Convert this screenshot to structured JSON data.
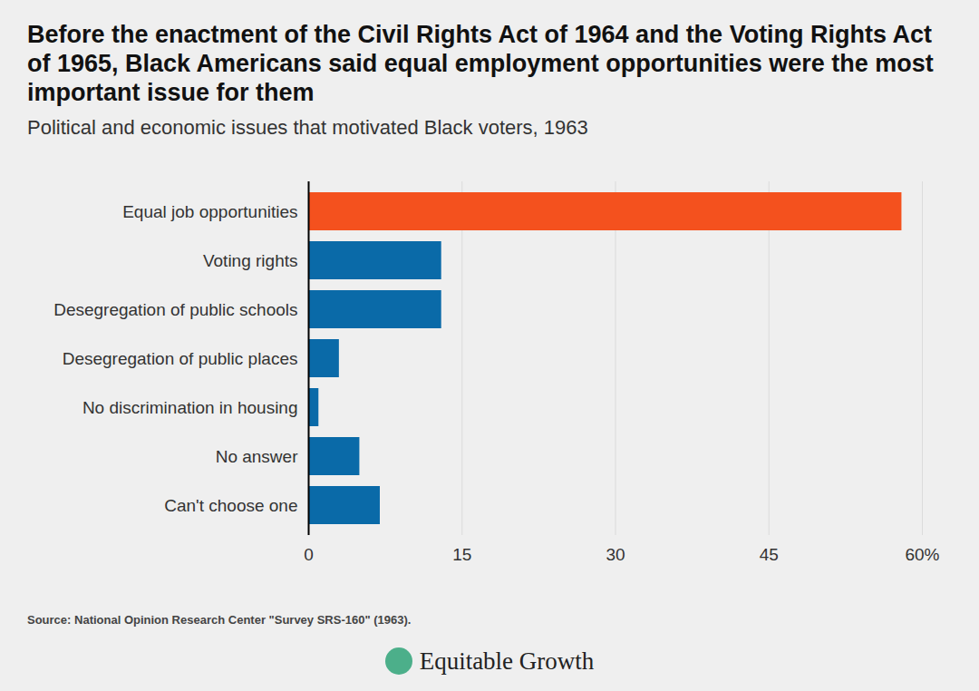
{
  "chart_data": {
    "type": "bar",
    "orientation": "horizontal",
    "title": "Before the enactment of the Civil Rights Act of 1964 and the Voting Rights Act of 1965, Black Americans said equal employment opportunities were the most important issue for them",
    "subtitle": "Political and economic issues that motivated Black voters, 1963",
    "categories": [
      "Equal job opportunities",
      "Voting rights",
      "Desegregation of public schools",
      "Desegregation of public places",
      "No discrimination in housing",
      "No answer",
      "Can't choose one"
    ],
    "values": [
      58,
      13,
      13,
      3,
      1,
      5,
      7
    ],
    "colors": [
      "#f4511e",
      "#0a6aa8",
      "#0a6aa8",
      "#0a6aa8",
      "#0a6aa8",
      "#0a6aa8",
      "#0a6aa8"
    ],
    "xlim": [
      0,
      60
    ],
    "xticks": [
      0,
      15,
      30,
      45,
      {
        "value": 60,
        "label": "60%"
      }
    ],
    "grid": true,
    "source": "Source: National Opinion Research Center \"Survey SRS-160\" (1963).",
    "footer": "Equitable Growth"
  }
}
